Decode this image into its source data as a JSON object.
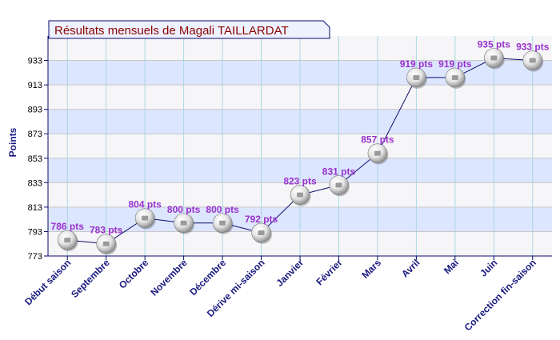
{
  "chart_data": {
    "type": "line",
    "title": "Résultats mensuels de Magali TAILLARDAT",
    "ylabel": "Points",
    "xlabel": "",
    "categories": [
      "Début saison",
      "Septembre",
      "Octobre",
      "Novembre",
      "Décembre",
      "Dérive mi-saison",
      "Janvier",
      "Février",
      "Mars",
      "Avril",
      "Mai",
      "Juin",
      "Correction fin-saison"
    ],
    "values": [
      786,
      783,
      804,
      800,
      800,
      792,
      823,
      831,
      857,
      919,
      919,
      935,
      933
    ],
    "labels": [
      "786 pts",
      "783 pts",
      "804 pts",
      "800 pts",
      "800 pts",
      "792 pts",
      "823 pts",
      "831 pts",
      "857 pts",
      "919 pts",
      "919 pts",
      "935 pts",
      "933 pts"
    ],
    "yticks": [
      773,
      793,
      813,
      833,
      853,
      873,
      893,
      913,
      933
    ],
    "ylim": [
      773,
      953
    ],
    "grid": true,
    "legend": "none"
  },
  "colors": {
    "title_text": "#8b0000",
    "title_bg": "#eef2ff",
    "band_light": "#dde6ff",
    "band_alt": "#f6f6f8",
    "grid_line": "#c8c8c8",
    "vertical_grid": "#a9d6e3",
    "axis": "#0a0a6b",
    "series_line": "#0a0a6b",
    "data_label": "#9932cc",
    "category_label": "#1a1a80"
  },
  "marker_icon": "ping-pong-ball-icon"
}
